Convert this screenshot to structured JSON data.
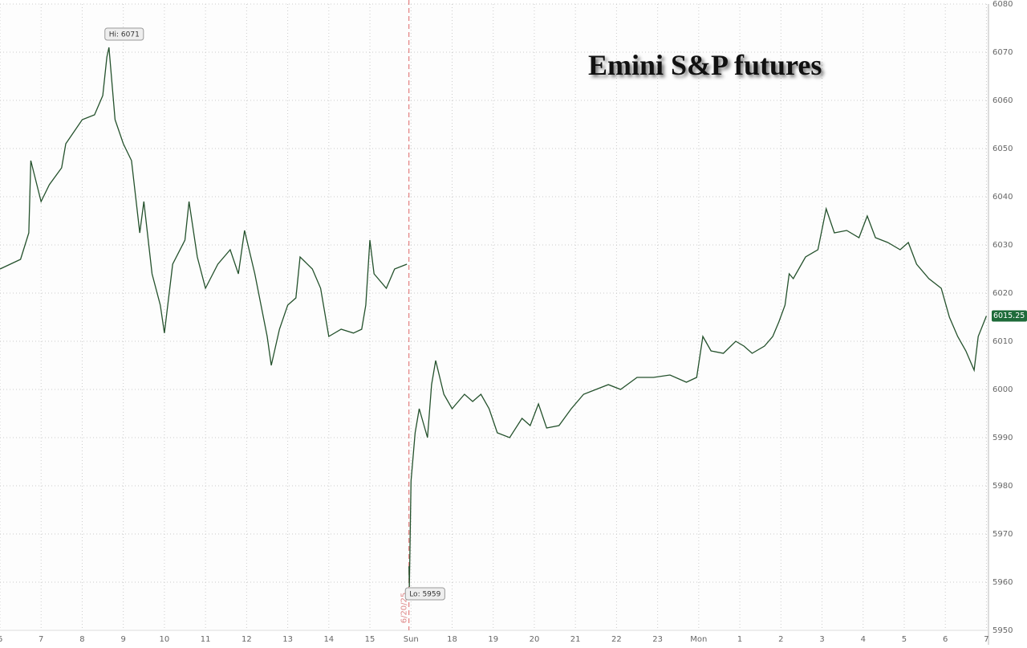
{
  "chart_data": {
    "type": "line",
    "title": "Emini S&P futures",
    "x": [
      0,
      0.5,
      0.7,
      0.75,
      1.0,
      1.2,
      1.5,
      1.6,
      2.0,
      2.3,
      2.5,
      2.6,
      2.65,
      2.8,
      3.0,
      3.2,
      3.4,
      3.5,
      3.7,
      3.9,
      4.0,
      4.2,
      4.5,
      4.6,
      4.8,
      5.0,
      5.3,
      5.6,
      5.8,
      5.95,
      6.2,
      6.5,
      6.6,
      6.8,
      7.0,
      7.2,
      7.3,
      7.6,
      7.8,
      8.0,
      8.3,
      8.6,
      8.8,
      8.9,
      9.0,
      9.1,
      9.4,
      9.6,
      9.9,
      9.93,
      9.95,
      9.96,
      10.0,
      10.1,
      10.2,
      10.4,
      10.5,
      10.6,
      10.8,
      11.0,
      11.3,
      11.5,
      11.7,
      11.9,
      12.1,
      12.4,
      12.7,
      12.9,
      13.1,
      13.3,
      13.6,
      13.9,
      14.2,
      14.5,
      14.8,
      15.1,
      15.5,
      15.9,
      16.3,
      16.7,
      16.95,
      17.1,
      17.3,
      17.6,
      17.9,
      18.1,
      18.3,
      18.6,
      18.8,
      18.95,
      19.1,
      19.2,
      19.3,
      19.6,
      19.9,
      20.1,
      20.3,
      20.6,
      20.9,
      21.1,
      21.3,
      21.6,
      21.9,
      22.1,
      22.3,
      22.6,
      22.9,
      23.1,
      23.3,
      23.5,
      23.7,
      23.8,
      24.0
    ],
    "values": [
      6025,
      6027,
      6032.5,
      6047.5,
      6039,
      6042.5,
      6046,
      6051,
      6056,
      6057,
      6061,
      6069,
      6071,
      6056,
      6051,
      6047.5,
      6032.5,
      6039,
      6024,
      6017.5,
      6011.7,
      6026,
      6031,
      6039,
      6027.5,
      6021,
      6026,
      6029,
      6024,
      6033,
      6024,
      6011,
      6005,
      6012.5,
      6017.5,
      6019,
      6027.5,
      6025,
      6021,
      6011,
      6012.5,
      6011.7,
      6012.5,
      6017.5,
      6031,
      6024,
      6021,
      6025,
      6026,
      null,
      5963.3,
      5959,
      5981,
      5991,
      5996,
      5990,
      6001,
      6006,
      5999,
      5996,
      5999,
      5997.5,
      5999,
      5996,
      5991,
      5990,
      5994,
      5992.5,
      5997,
      5992,
      5992.5,
      5996,
      5999,
      6000,
      6001,
      6000,
      6002.5,
      6002.5,
      6003,
      6001.5,
      6002.5,
      6011,
      6008,
      6007.5,
      6010,
      6009,
      6007.5,
      6009,
      6011,
      6014,
      6017.5,
      6024,
      6023,
      6027.5,
      6029,
      6037.5,
      6032.5,
      6033,
      6031.5,
      6036,
      6031.5,
      6030.5,
      6029,
      6030.5,
      6026,
      6023,
      6021,
      6015,
      6011,
      6008,
      6004,
      6011,
      6015.25
    ],
    "color": "#24512c",
    "xlim": [
      0,
      24.05
    ],
    "xticks": [
      {
        "value": 0,
        "label": "6"
      },
      {
        "value": 1,
        "label": "7"
      },
      {
        "value": 2,
        "label": "8"
      },
      {
        "value": 3,
        "label": "9"
      },
      {
        "value": 4,
        "label": "10"
      },
      {
        "value": 5,
        "label": "11"
      },
      {
        "value": 6,
        "label": "12"
      },
      {
        "value": 7,
        "label": "13"
      },
      {
        "value": 8,
        "label": "14"
      },
      {
        "value": 9,
        "label": "15"
      },
      {
        "value": 10,
        "label": "Sun"
      },
      {
        "value": 11,
        "label": "18"
      },
      {
        "value": 12,
        "label": "19"
      },
      {
        "value": 13,
        "label": "20"
      },
      {
        "value": 14,
        "label": "21"
      },
      {
        "value": 15,
        "label": "22"
      },
      {
        "value": 16,
        "label": "23"
      },
      {
        "value": 17,
        "label": "Mon"
      },
      {
        "value": 18,
        "label": "1"
      },
      {
        "value": 19,
        "label": "2"
      },
      {
        "value": 20,
        "label": "3"
      },
      {
        "value": 21,
        "label": "4"
      },
      {
        "value": 22,
        "label": "5"
      },
      {
        "value": 23,
        "label": "6"
      },
      {
        "value": 24,
        "label": "7"
      }
    ],
    "ylim": [
      5950,
      6080
    ],
    "yticks": [
      5950,
      5960,
      5970,
      5980,
      5990,
      6000,
      6010,
      6020,
      6030,
      6040,
      6050,
      6060,
      6070,
      6080
    ],
    "grid": true,
    "annotations": {
      "high": "Hi: 6071",
      "low": "Lo: 5959",
      "last": "6015.25",
      "session_date": "6/20/25"
    }
  }
}
